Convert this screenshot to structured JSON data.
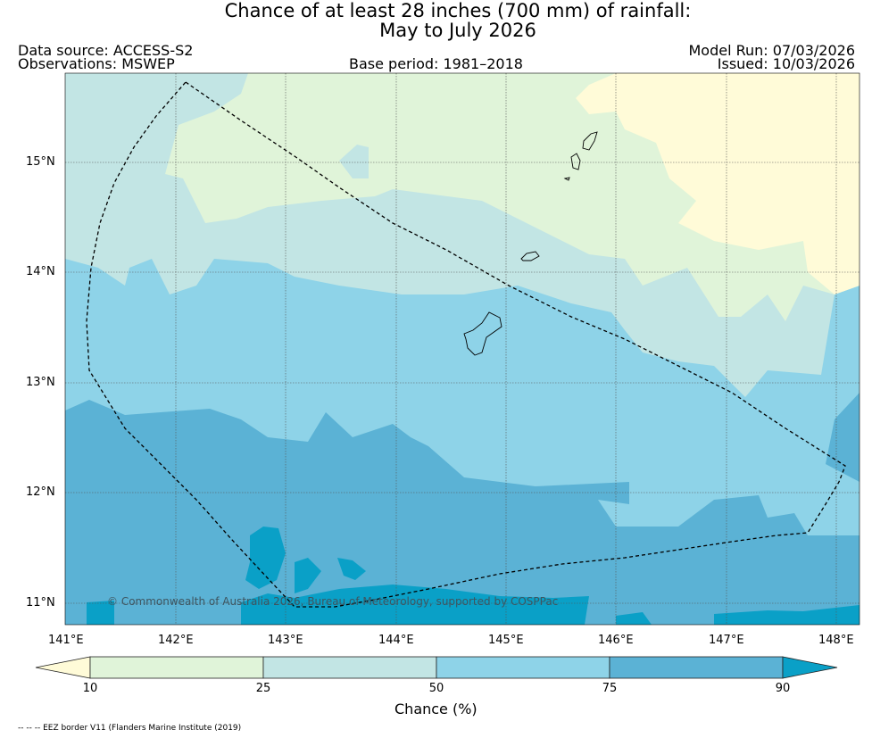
{
  "title": {
    "line1": "Chance of at least 28 inches (700  mm) of rainfall:",
    "line2": "May to July 2026"
  },
  "header": {
    "data_source": "Data source: ACCESS-S2",
    "observations": "Observations: MSWEP",
    "base_period": "Base period: 1981–2018",
    "model_run": "Model Run: 07/03/2026",
    "issued": "Issued: 10/03/2026"
  },
  "map": {
    "x_ticks": [
      "141°E",
      "142°E",
      "143°E",
      "144°E",
      "145°E",
      "146°E",
      "147°E",
      "148°E"
    ],
    "y_ticks": [
      "15°N",
      "14°N",
      "13°N",
      "12°N",
      "11°N"
    ],
    "copyright": "© Commonwealth of Australia 2026, Bureau of Meteorology, supported by COSPPac",
    "extent": {
      "lon": [
        141.0,
        148.2
      ],
      "lat": [
        10.8,
        15.8
      ]
    }
  },
  "legend": {
    "label": "Chance (%)",
    "tick_labels": [
      "10",
      "25",
      "50",
      "75",
      "90"
    ],
    "bins": [
      {
        "range": "<10",
        "color": "#fffbd8"
      },
      {
        "range": "10-25",
        "color": "#e0f4d9"
      },
      {
        "range": "25-50",
        "color": "#c2e5e4"
      },
      {
        "range": "50-75",
        "color": "#8ed3e8"
      },
      {
        "range": "75-90",
        "color": "#5bb2d5"
      },
      {
        "range": ">90",
        "color": "#0aa0c7"
      }
    ]
  },
  "footer": {
    "eez_note": "-- -- -- EEZ border V11 (Flanders Marine Institute (2019)"
  }
}
